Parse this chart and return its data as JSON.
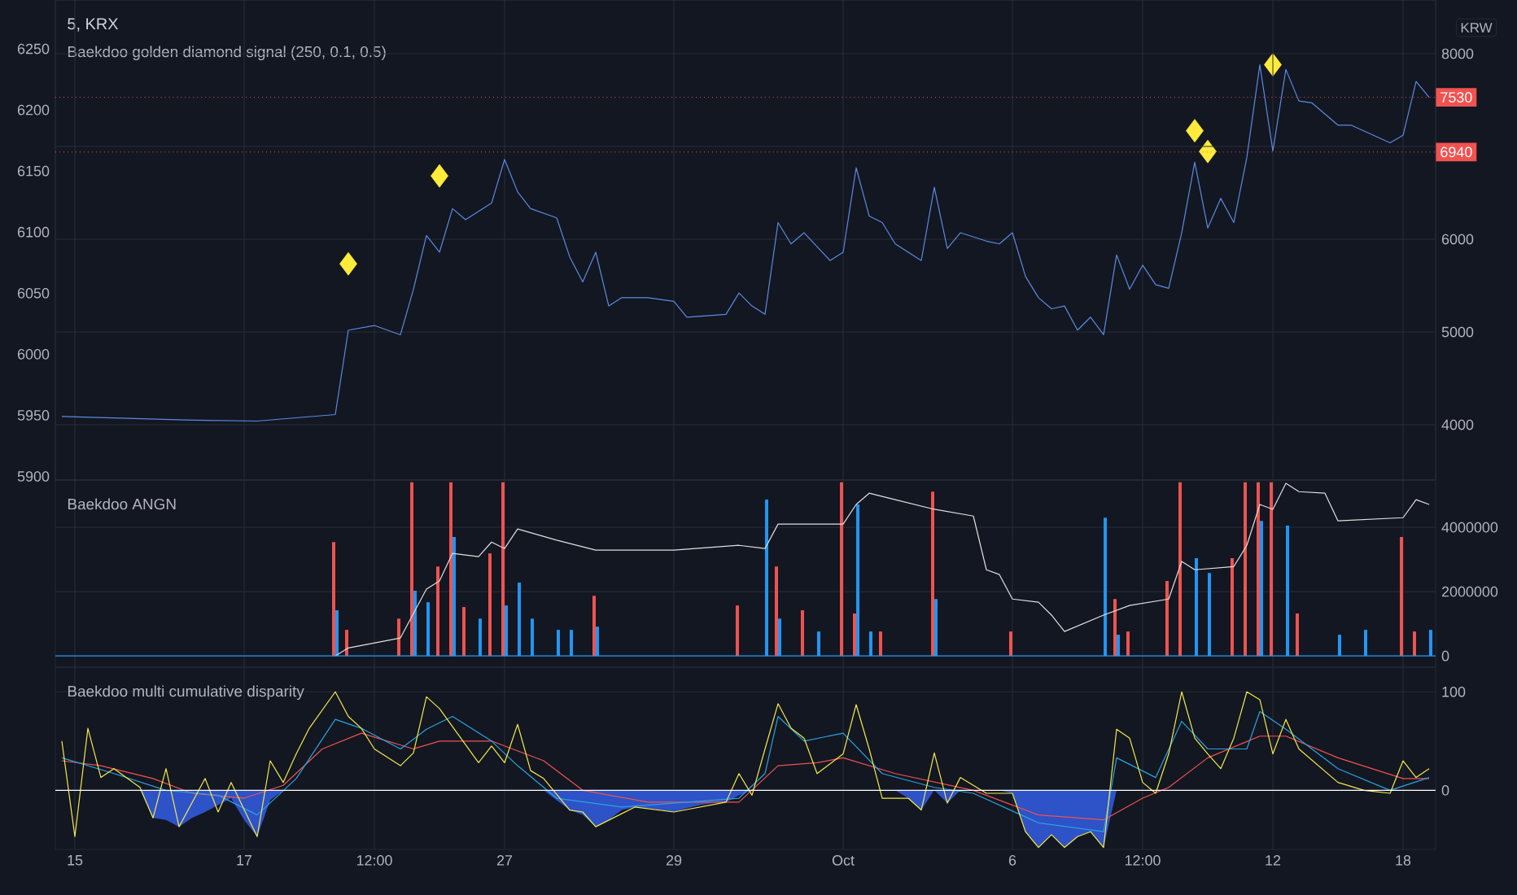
{
  "chart_data": [
    {
      "type": "line",
      "title": "5, KRX",
      "subtitle": "Baekdoo golden diamond signal (250, 0.1, 0.5)",
      "y2label": "KRW",
      "categories": [
        null,
        null,
        null,
        null,
        null,
        null,
        null,
        null,
        null,
        null,
        null,
        null,
        null,
        null,
        null,
        null,
        null,
        null,
        null,
        null,
        null,
        null,
        null,
        null,
        null,
        null,
        null,
        null,
        null,
        null,
        null,
        null,
        null,
        null,
        null,
        null,
        null,
        null,
        null,
        null,
        null,
        null,
        null,
        null,
        null,
        null,
        null,
        null,
        null,
        null,
        null,
        null,
        null,
        null,
        null,
        null,
        null,
        null,
        null,
        null,
        null,
        null,
        null,
        null,
        null,
        null,
        null,
        null,
        null,
        null,
        null,
        null,
        null,
        null,
        null,
        null,
        null,
        null,
        null,
        null,
        null,
        null,
        null,
        null,
        null,
        null,
        null,
        null,
        null,
        null,
        null,
        null,
        null,
        null,
        null,
        null,
        null,
        null,
        null,
        null,
        null,
        null,
        null,
        null,
        null,
        null
      ],
      "ylim": [
        5897,
        6290
      ],
      "yticks": [
        5900,
        5950,
        6000,
        6050,
        6100,
        6150,
        6200,
        6250
      ],
      "y2lim": [
        3404,
        8579
      ],
      "y2ticks": [
        4000,
        5000,
        6000,
        {
          "value": 7000,
          "label": null
        },
        8000
      ],
      "grid": true,
      "tick_labels": "y",
      "series": [
        {
          "axis": "y2",
          "color": "#5b8be0",
          "values": [
            4090,
            null,
            null,
            null,
            null,
            4070,
            null,
            null,
            null,
            null,
            4050,
            null,
            null,
            null,
            null,
            4040,
            null,
            null,
            null,
            null,
            null,
            4110,
            5020,
            null,
            5070,
            null,
            4970,
            5460,
            6040,
            5860,
            6330,
            6210,
            6300,
            6390,
            6860,
            6510,
            6330,
            null,
            6230,
            5810,
            5540,
            5860,
            5280,
            5370,
            null,
            5370,
            null,
            5330,
            5160,
            null,
            5180,
            5190,
            5420,
            5280,
            5190,
            6180,
            5950,
            6070,
            null,
            5770,
            5860,
            6770,
            6250,
            6180,
            5950,
            null,
            5770,
            6560,
            5900,
            6070,
            null,
            5980,
            5950,
            6070,
            5600,
            5370,
            5250,
            5280,
            5020,
            5160,
            4970,
            5830,
            5460,
            5720,
            5510,
            5470,
            6070,
            6830,
            6120,
            6440,
            6180,
            6880,
            7880,
            6950,
            7830,
            7490,
            7470,
            null,
            7230,
            7230,
            null,
            null,
            7040,
            7120,
            7700,
            7530
          ]
        },
        {
          "type": "scatter",
          "marker": "diamond",
          "color": "#ffeb3b",
          "values": [
            null,
            null,
            null,
            null,
            null,
            null,
            null,
            null,
            null,
            null,
            null,
            null,
            null,
            null,
            null,
            null,
            null,
            null,
            null,
            null,
            null,
            null,
            6074,
            null,
            null,
            null,
            null,
            null,
            null,
            6146,
            null,
            null,
            null,
            null,
            null,
            null,
            null,
            null,
            null,
            null,
            null,
            null,
            null,
            null,
            null,
            null,
            null,
            null,
            null,
            null,
            null,
            null,
            null,
            null,
            null,
            null,
            null,
            null,
            null,
            null,
            null,
            null,
            null,
            null,
            null,
            null,
            null,
            null,
            null,
            null,
            null,
            null,
            null,
            null,
            null,
            null,
            null,
            null,
            null,
            null,
            null,
            null,
            null,
            null,
            null,
            null,
            null,
            6183,
            6166,
            null,
            null,
            null,
            null,
            6237,
            null,
            null,
            null,
            null,
            null,
            null,
            null,
            null,
            null,
            null,
            null,
            null
          ]
        }
      ],
      "ref_lines": [
        {
          "axis": "y2",
          "value": 7530,
          "label": "7530",
          "color": "#f05350"
        },
        {
          "axis": "y2",
          "value": 6940,
          "label": "6940",
          "color": "#f05350"
        }
      ]
    },
    {
      "type": "bar",
      "title": "Baekdoo ANGN",
      "categories": [
        null,
        null,
        null,
        null,
        null,
        null,
        null,
        null,
        null,
        null,
        null,
        null,
        null,
        null,
        null,
        null,
        null,
        null,
        null,
        null,
        null,
        null,
        null,
        null,
        null,
        null,
        null,
        null,
        null,
        null,
        null,
        null,
        null,
        null,
        null,
        null,
        null,
        null,
        null,
        null,
        null,
        null,
        null,
        null,
        null,
        null,
        null,
        null,
        null,
        null,
        null,
        null,
        null,
        null,
        null,
        null,
        null,
        null,
        null,
        null,
        null,
        null,
        null,
        null,
        null,
        null,
        null,
        null,
        null,
        null,
        null,
        null,
        null,
        null,
        null,
        null,
        null,
        null,
        null,
        null,
        null,
        null,
        null,
        null,
        null,
        null,
        null,
        null,
        null,
        null,
        null,
        null,
        null,
        null,
        null,
        null,
        null,
        null,
        null,
        null,
        null,
        null,
        null,
        null,
        null,
        null
      ],
      "ylim": [
        -350000,
        5470000
      ],
      "yticks": [
        0,
        2000000,
        4000000
      ],
      "grid": true,
      "tick_labels": "y",
      "series": [
        {
          "color": "#ef5350",
          "values": [
            null,
            null,
            null,
            null,
            null,
            null,
            null,
            null,
            null,
            null,
            null,
            null,
            null,
            null,
            null,
            null,
            null,
            null,
            null,
            null,
            null,
            3540000,
            810000,
            null,
            null,
            null,
            1160000,
            5400000,
            null,
            2780000,
            5400000,
            1520000,
            null,
            3190000,
            5400000,
            null,
            null,
            null,
            null,
            null,
            null,
            1870000,
            null,
            null,
            null,
            null,
            null,
            null,
            null,
            null,
            null,
            null,
            1570000,
            null,
            null,
            2780000,
            null,
            1420000,
            null,
            null,
            5400000,
            1320000,
            null,
            760000,
            null,
            null,
            null,
            5110000,
            null,
            null,
            null,
            null,
            null,
            760000,
            null,
            null,
            null,
            null,
            null,
            null,
            null,
            1770000,
            760000,
            null,
            null,
            2330000,
            5400000,
            null,
            null,
            null,
            3040000,
            5400000,
            5400000,
            5400000,
            null,
            1320000,
            null,
            null,
            null,
            null,
            null,
            null,
            null,
            3700000,
            760000,
            null
          ]
        },
        {
          "color": "#2196f3",
          "values": [
            null,
            null,
            null,
            null,
            null,
            null,
            null,
            null,
            null,
            null,
            null,
            null,
            null,
            null,
            null,
            null,
            null,
            null,
            null,
            null,
            null,
            1420000,
            null,
            null,
            null,
            null,
            null,
            2030000,
            1670000,
            null,
            3700000,
            null,
            1160000,
            null,
            1570000,
            2280000,
            1160000,
            null,
            810000,
            810000,
            null,
            910000,
            null,
            null,
            null,
            null,
            null,
            null,
            null,
            null,
            null,
            null,
            null,
            null,
            4860000,
            1160000,
            null,
            null,
            760000,
            null,
            null,
            4710000,
            760000,
            null,
            null,
            null,
            null,
            1770000,
            null,
            null,
            null,
            null,
            null,
            null,
            null,
            null,
            null,
            null,
            null,
            null,
            4300000,
            660000,
            null,
            null,
            null,
            null,
            null,
            3040000,
            2580000,
            null,
            null,
            null,
            4200000,
            null,
            4050000,
            null,
            null,
            null,
            660000,
            null,
            810000,
            null,
            null,
            null,
            null,
            810000
          ]
        },
        {
          "type": "line",
          "color": "#e0e0e0",
          "values": [
            null,
            null,
            null,
            null,
            null,
            null,
            null,
            null,
            null,
            null,
            null,
            null,
            null,
            null,
            null,
            null,
            null,
            null,
            null,
            null,
            null,
            0,
            250000,
            null,
            null,
            null,
            560000,
            null,
            2080000,
            2330000,
            3190000,
            null,
            3090000,
            3540000,
            3340000,
            3950000,
            null,
            null,
            3600000,
            null,
            null,
            3290000,
            null,
            null,
            null,
            null,
            null,
            3290000,
            null,
            null,
            null,
            null,
            3440000,
            null,
            3340000,
            4100000,
            null,
            null,
            null,
            null,
            4100000,
            4710000,
            5060000,
            null,
            4860000,
            null,
            null,
            4560000,
            null,
            null,
            4350000,
            2680000,
            2530000,
            1770000,
            null,
            1670000,
            1270000,
            760000,
            null,
            null,
            1270000,
            null,
            1570000,
            null,
            null,
            1770000,
            2940000,
            2680000,
            null,
            null,
            2780000,
            3440000,
            4710000,
            4560000,
            5370000,
            5110000,
            null,
            5060000,
            4200000,
            null,
            null,
            null,
            null,
            4300000,
            4860000,
            4710000
          ]
        }
      ],
      "ref_lines": [
        {
          "axis": "y",
          "value": 0,
          "color": "#2196f3"
        }
      ]
    },
    {
      "type": "line",
      "title": "Baekdoo multi cumulative disparity",
      "categories": [
        null,
        "15",
        null,
        null,
        null,
        null,
        null,
        null,
        null,
        null,
        null,
        null,
        null,
        null,
        "17",
        null,
        null,
        null,
        null,
        null,
        null,
        null,
        null,
        null,
        "12:00",
        null,
        null,
        null,
        null,
        null,
        null,
        null,
        null,
        null,
        "27",
        null,
        null,
        null,
        null,
        null,
        null,
        null,
        null,
        null,
        null,
        null,
        null,
        "29",
        null,
        null,
        null,
        null,
        null,
        null,
        null,
        null,
        null,
        null,
        null,
        null,
        "Oct",
        null,
        null,
        null,
        null,
        null,
        null,
        null,
        null,
        null,
        null,
        null,
        null,
        "6",
        null,
        null,
        null,
        null,
        null,
        null,
        null,
        null,
        null,
        "12:00",
        null,
        null,
        null,
        null,
        null,
        null,
        null,
        null,
        null,
        "12",
        null,
        null,
        null,
        null,
        null,
        null,
        null,
        null,
        null,
        "18",
        null,
        null
      ],
      "ylim": [
        -60,
        125
      ],
      "yticks": [
        0,
        100
      ],
      "grid": true,
      "series": [
        {
          "type": "area",
          "color": "#2e52c8",
          "values": [
            null,
            null,
            null,
            null,
            null,
            null,
            0,
            -28,
            -30,
            -37,
            -28,
            -22,
            -15,
            -8,
            -30,
            -47,
            -10,
            0,
            null,
            null,
            null,
            null,
            null,
            null,
            null,
            null,
            null,
            null,
            null,
            null,
            null,
            null,
            null,
            null,
            null,
            null,
            null,
            0,
            -10,
            -20,
            -25,
            -37,
            -30,
            -20,
            -17,
            -18,
            -20,
            -22,
            -18,
            -15,
            -13,
            -12,
            -5,
            0,
            null,
            null,
            null,
            null,
            null,
            null,
            null,
            null,
            null,
            null,
            0,
            -8,
            -20,
            0,
            -13,
            0,
            null,
            null,
            0,
            -3,
            -42,
            -58,
            -45,
            -58,
            -47,
            -42,
            -58,
            0,
            null,
            null,
            null,
            null,
            null,
            null,
            null,
            null,
            null,
            null,
            null,
            null,
            null,
            null,
            null,
            null,
            null,
            null,
            null,
            null,
            null,
            null,
            null,
            null
          ]
        },
        {
          "color": "#ef5350",
          "values": [
            30,
            null,
            null,
            25,
            null,
            null,
            null,
            12,
            null,
            null,
            -3,
            null,
            null,
            null,
            -8,
            null,
            null,
            5,
            null,
            null,
            42,
            null,
            null,
            58,
            null,
            null,
            null,
            42,
            null,
            50,
            null,
            null,
            null,
            50,
            null,
            null,
            null,
            30,
            null,
            null,
            0,
            null,
            null,
            null,
            null,
            -12,
            null,
            null,
            null,
            null,
            null,
            null,
            -12,
            null,
            null,
            25,
            null,
            null,
            28,
            null,
            33,
            null,
            null,
            null,
            17,
            null,
            null,
            null,
            null,
            null,
            0,
            null,
            null,
            null,
            null,
            -25,
            null,
            null,
            null,
            null,
            -30,
            null,
            null,
            -8,
            null,
            3,
            null,
            null,
            33,
            null,
            null,
            null,
            55,
            null,
            55,
            null,
            null,
            null,
            33,
            null,
            null,
            null,
            null,
            12,
            null,
            12
          ]
        },
        {
          "color": "#29a3e0",
          "values": [
            33,
            null,
            25,
            null,
            17,
            null,
            null,
            null,
            0,
            null,
            null,
            null,
            -5,
            null,
            null,
            -25,
            null,
            null,
            12,
            null,
            null,
            72,
            null,
            63,
            null,
            null,
            42,
            null,
            62,
            null,
            75,
            null,
            null,
            50,
            null,
            25,
            null,
            null,
            -8,
            null,
            null,
            null,
            null,
            -17,
            null,
            null,
            null,
            null,
            null,
            null,
            null,
            null,
            -8,
            null,
            17,
            75,
            null,
            50,
            null,
            null,
            58,
            null,
            null,
            17,
            null,
            null,
            null,
            3,
            null,
            null,
            -3,
            null,
            null,
            null,
            null,
            -33,
            null,
            null,
            null,
            null,
            -42,
            33,
            null,
            null,
            13,
            null,
            70,
            null,
            42,
            null,
            null,
            42,
            80,
            null,
            62,
            null,
            null,
            null,
            22,
            null,
            null,
            null,
            0,
            null,
            null,
            13
          ]
        },
        {
          "color": "#f5e94a",
          "values": [
            50,
            -47,
            63,
            13,
            22,
            null,
            3,
            -28,
            22,
            -37,
            null,
            12,
            -22,
            8,
            null,
            -47,
            30,
            8,
            37,
            63,
            null,
            100,
            75,
            63,
            42,
            null,
            25,
            38,
            95,
            83,
            null,
            null,
            28,
            45,
            28,
            67,
            20,
            12,
            null,
            -20,
            -22,
            -37,
            null,
            null,
            -17,
            null,
            null,
            -22,
            null,
            null,
            null,
            -12,
            17,
            -5,
            42,
            88,
            63,
            53,
            17,
            null,
            37,
            87,
            42,
            -8,
            null,
            -8,
            -20,
            38,
            -13,
            13,
            null,
            -3,
            null,
            -3,
            -42,
            -58,
            -45,
            -58,
            -47,
            -42,
            -58,
            62,
            53,
            8,
            -3,
            37,
            100,
            53,
            37,
            22,
            53,
            100,
            92,
            37,
            72,
            42,
            null,
            null,
            8,
            null,
            0,
            null,
            -3,
            30,
            13,
            22
          ]
        }
      ],
      "ref_lines": [
        {
          "axis": "y",
          "value": 0,
          "color": "#ffffff"
        }
      ]
    }
  ]
}
